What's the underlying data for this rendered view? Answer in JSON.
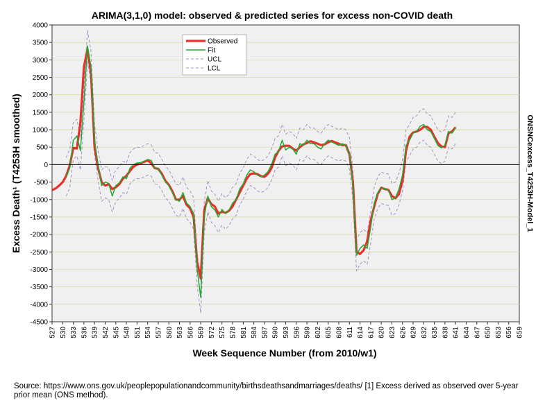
{
  "chart_data": {
    "type": "line",
    "title": "ARIMA(3,1,0) model: observed & predicted series for excess non-COVID death",
    "xlabel": "Week Sequence Number (from 2010/w1)",
    "ylabel": "Excess Death¹ (T4253H smoothed)",
    "side_label": "ONSNCexcess_T4253H-Model_1",
    "xlim": [
      527,
      659
    ],
    "ylim": [
      -4500,
      4000
    ],
    "y_ticks": [
      4000,
      3500,
      3000,
      2500,
      2000,
      1500,
      1000,
      500,
      0,
      -500,
      -1000,
      -1500,
      -2000,
      -2500,
      -3000,
      -3500,
      -4000,
      -4500
    ],
    "x_ticks": [
      527,
      530,
      533,
      536,
      539,
      542,
      545,
      548,
      551,
      554,
      557,
      560,
      563,
      566,
      569,
      572,
      575,
      578,
      581,
      584,
      587,
      590,
      593,
      596,
      599,
      602,
      605,
      608,
      611,
      614,
      617,
      620,
      623,
      626,
      629,
      632,
      635,
      638,
      641,
      644,
      647,
      650,
      653,
      656,
      659
    ],
    "legend": [
      "Observed",
      "Fit",
      "UCL",
      "LCL"
    ],
    "x_start": 527,
    "series": [
      {
        "name": "Observed",
        "color": "#e8302a",
        "values": [
          -730,
          -680,
          -600,
          -500,
          -320,
          -20,
          480,
          460,
          1200,
          2800,
          3300,
          2600,
          500,
          -100,
          -500,
          -600,
          -560,
          -700,
          -650,
          -560,
          -400,
          -320,
          -180,
          -60,
          0,
          40,
          80,
          120,
          40,
          -100,
          -120,
          -260,
          -460,
          -580,
          -760,
          -1000,
          -1000,
          -900,
          -1150,
          -1250,
          -1500,
          -2800,
          -3250,
          -1300,
          -960,
          -1130,
          -1200,
          -1400,
          -1350,
          -1380,
          -1320,
          -1200,
          -1000,
          -800,
          -600,
          -400,
          -270,
          -250,
          -270,
          -330,
          -350,
          -260,
          -100,
          200,
          400,
          520,
          540,
          540,
          460,
          400,
          500,
          580,
          620,
          670,
          640,
          600,
          560,
          580,
          640,
          680,
          640,
          600,
          560,
          560,
          300,
          -500,
          -2500,
          -2560,
          -2450,
          -2200,
          -1600,
          -1200,
          -840,
          -660,
          -700,
          -720,
          -900,
          -960,
          -840,
          -460,
          400,
          800,
          920,
          950,
          1000,
          1080,
          1080,
          1000,
          800,
          620,
          520,
          500,
          900,
          950,
          1070
        ]
      },
      {
        "name": "Fit",
        "color": "#1fa834",
        "values": [
          null,
          null,
          null,
          null,
          -350,
          -100,
          700,
          820,
          400,
          1800,
          3400,
          2800,
          700,
          0,
          -600,
          -500,
          -540,
          -900,
          -600,
          -520,
          -350,
          -400,
          -100,
          0,
          50,
          50,
          100,
          150,
          120,
          -100,
          -120,
          -300,
          -500,
          -600,
          -800,
          -1000,
          -1050,
          -800,
          -1100,
          -1200,
          -1400,
          -3000,
          -3800,
          -1500,
          -900,
          -1200,
          -1300,
          -1500,
          -1280,
          -1400,
          -1300,
          -1100,
          -1000,
          -700,
          -550,
          -300,
          -150,
          -200,
          -300,
          -350,
          -300,
          -200,
          0,
          300,
          380,
          700,
          420,
          500,
          450,
          300,
          600,
          550,
          700,
          600,
          600,
          500,
          450,
          600,
          700,
          650,
          600,
          550,
          600,
          550,
          320,
          -600,
          -2600,
          -2400,
          -2300,
          -2400,
          -1800,
          -1100,
          -800,
          -660,
          -700,
          -720,
          -1000,
          -950,
          -700,
          -300,
          550,
          700,
          900,
          950,
          1100,
          1150,
          1000,
          950,
          750,
          550,
          480,
          550,
          950,
          900,
          1050
        ]
      },
      {
        "name": "UCL",
        "color": "#a48ec4",
        "values": [
          null,
          null,
          null,
          null,
          200,
          450,
          1200,
          1300,
          800,
          2200,
          3850,
          3250,
          1150,
          400,
          -150,
          -50,
          -100,
          -450,
          -150,
          -60,
          100,
          50,
          350,
          450,
          500,
          500,
          550,
          600,
          570,
          350,
          330,
          150,
          -50,
          -150,
          -350,
          -550,
          -600,
          -350,
          -650,
          -750,
          -950,
          -2550,
          -3350,
          -1050,
          -450,
          -750,
          -850,
          -1050,
          -830,
          -950,
          -850,
          -650,
          -550,
          -250,
          -100,
          150,
          300,
          250,
          150,
          100,
          150,
          250,
          450,
          750,
          830,
          1150,
          870,
          950,
          900,
          750,
          1050,
          1000,
          1150,
          1050,
          1050,
          950,
          900,
          1050,
          1150,
          1100,
          1050,
          1000,
          1050,
          1000,
          770,
          -150,
          -2150,
          -1950,
          -1850,
          -1950,
          -1350,
          -650,
          -350,
          -210,
          -250,
          -270,
          -550,
          -500,
          -250,
          150,
          1000,
          1150,
          1350,
          1400,
          1550,
          1600,
          1450,
          1400,
          1200,
          1000,
          930,
          1000,
          1400,
          1350,
          1500
        ]
      },
      {
        "name": "LCL",
        "color": "#a48ec4",
        "values": [
          null,
          null,
          null,
          null,
          -900,
          -650,
          150,
          250,
          -150,
          1250,
          2950,
          2350,
          250,
          -450,
          -1050,
          -950,
          -1000,
          -1350,
          -1050,
          -970,
          -800,
          -850,
          -550,
          -450,
          -400,
          -400,
          -350,
          -300,
          -330,
          -550,
          -570,
          -750,
          -950,
          -1050,
          -1250,
          -1450,
          -1500,
          -1250,
          -1550,
          -1650,
          -1850,
          -3450,
          -4250,
          -1950,
          -1350,
          -1650,
          -1750,
          -1950,
          -1730,
          -1850,
          -1750,
          -1550,
          -1450,
          -1150,
          -1000,
          -750,
          -600,
          -650,
          -750,
          -800,
          -750,
          -650,
          -450,
          -150,
          -70,
          250,
          -30,
          50,
          0,
          -150,
          150,
          100,
          250,
          150,
          150,
          50,
          0,
          150,
          250,
          200,
          150,
          100,
          150,
          100,
          -130,
          -1050,
          -3050,
          -2850,
          -2750,
          -2850,
          -2250,
          -1550,
          -1250,
          -1110,
          -1150,
          -1170,
          -1450,
          -1400,
          -1150,
          -750,
          100,
          250,
          450,
          500,
          650,
          700,
          550,
          500,
          300,
          100,
          30,
          100,
          500,
          450,
          600
        ]
      }
    ]
  },
  "source_note": "Source: https://www.ons.gov.uk/peoplepopulationandcommunity/birthsdeathsandmarriages/deaths/ [1] Excess derived as observed over 5-year prior mean (ONS method)."
}
